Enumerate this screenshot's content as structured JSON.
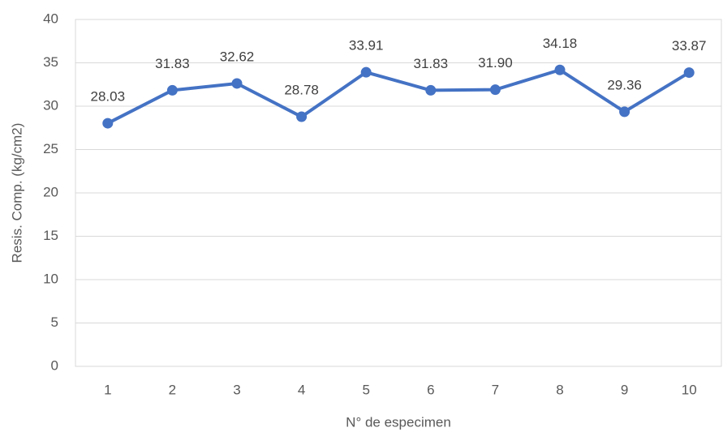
{
  "chart_data": {
    "type": "line",
    "x_label": "N° de especimen",
    "y_label": "Resis. Comp. (kg/cm2)",
    "categories": [
      "1",
      "2",
      "3",
      "4",
      "5",
      "6",
      "7",
      "8",
      "9",
      "10"
    ],
    "series": [
      {
        "name": "Resis. Comp.",
        "color": "#4472c4",
        "values": [
          28.03,
          31.83,
          32.62,
          28.78,
          33.91,
          31.83,
          31.9,
          34.18,
          29.36,
          33.87
        ],
        "value_labels": [
          "28.03",
          "31.83",
          "32.62",
          "28.78",
          "33.91",
          "31.83",
          "31.90",
          "34.18",
          "29.36",
          "33.87"
        ]
      }
    ],
    "ylim": [
      0,
      40
    ],
    "yticks": [
      0,
      5,
      10,
      15,
      20,
      25,
      30,
      35,
      40
    ],
    "grid": true
  }
}
